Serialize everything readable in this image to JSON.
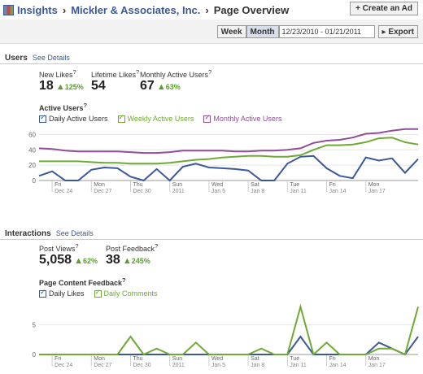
{
  "header": {
    "crumbs": [
      "Insights",
      "Mickler & Associates, Inc.",
      "Page Overview"
    ],
    "sep": "›",
    "create_ad": "+ Create an Ad"
  },
  "range": {
    "week": "Week",
    "month": "Month",
    "date_value": "12/23/2010 - 01/21/2011",
    "export": "Export"
  },
  "users": {
    "title": "Users",
    "see_details": "See Details",
    "metrics": [
      {
        "label": "New Likes",
        "value": "18",
        "pct": "125%",
        "up": true
      },
      {
        "label": "Lifetime Likes",
        "value": "54",
        "pct": "",
        "up": false
      },
      {
        "label": "Monthly Active Users",
        "value": "67",
        "pct": "63%",
        "up": true
      }
    ],
    "chart_title": "Active Users",
    "legend": [
      "Daily Active Users",
      "Weekly Active Users",
      "Monthly Active Users"
    ]
  },
  "interactions": {
    "title": "Interactions",
    "see_details": "See Details",
    "metrics": [
      {
        "label": "Post Views",
        "value": "5,058",
        "pct": "62%",
        "up": true
      },
      {
        "label": "Post Feedback",
        "value": "38",
        "pct": "245%",
        "up": true
      }
    ],
    "chart_title": "Page Content Feedback",
    "legend": [
      "Daily Likes",
      "Daily Comments"
    ]
  },
  "chart_data": [
    {
      "type": "line",
      "title": "Active Users",
      "ylim": [
        0,
        70
      ],
      "yticks": [
        0,
        20,
        40,
        60
      ],
      "x_ticks": [
        {
          "i": 1,
          "day": "Fri",
          "date": "Dec 24"
        },
        {
          "i": 4,
          "day": "Mon",
          "date": "Dec 27"
        },
        {
          "i": 7,
          "day": "Thu",
          "date": "Dec 30"
        },
        {
          "i": 10,
          "day": "Sun",
          "date": "2011"
        },
        {
          "i": 13,
          "day": "Wed",
          "date": "Jan 5"
        },
        {
          "i": 16,
          "day": "Sat",
          "date": "Jan 8"
        },
        {
          "i": 19,
          "day": "Tue",
          "date": "Jan 11"
        },
        {
          "i": 22,
          "day": "Fri",
          "date": "Jan 14"
        },
        {
          "i": 25,
          "day": "Mon",
          "date": "Jan 17"
        }
      ],
      "series": [
        {
          "name": "Daily Active Users",
          "color": "#3b5998",
          "values": [
            6,
            12,
            0,
            0,
            14,
            17,
            16,
            5,
            0,
            15,
            0,
            18,
            22,
            17,
            16,
            15,
            13,
            0,
            0,
            22,
            31,
            32,
            16,
            6,
            3,
            30,
            26,
            29,
            10,
            28
          ]
        },
        {
          "name": "Weekly Active Users",
          "color": "#6faa34",
          "values": [
            25,
            25,
            25,
            25,
            24,
            23,
            23,
            22,
            22,
            22,
            23,
            25,
            27,
            28,
            30,
            31,
            32,
            32,
            31,
            31,
            33,
            40,
            46,
            46,
            47,
            50,
            55,
            56,
            50,
            47
          ]
        },
        {
          "name": "Monthly Active Users",
          "color": "#8e4f96",
          "values": [
            42,
            41,
            39,
            38,
            38,
            38,
            38,
            37,
            36,
            36,
            37,
            39,
            39,
            39,
            39,
            38,
            38,
            39,
            39,
            40,
            42,
            49,
            52,
            53,
            56,
            61,
            62,
            65,
            67,
            67
          ]
        }
      ]
    },
    {
      "type": "line",
      "title": "Page Content Feedback",
      "ylim": [
        0,
        9
      ],
      "yticks": [
        0,
        5
      ],
      "x_ticks": [
        {
          "i": 1,
          "day": "Fri",
          "date": "Dec 24"
        },
        {
          "i": 4,
          "day": "Mon",
          "date": "Dec 27"
        },
        {
          "i": 7,
          "day": "Thu",
          "date": "Dec 30"
        },
        {
          "i": 10,
          "day": "Sun",
          "date": "2011"
        },
        {
          "i": 13,
          "day": "Wed",
          "date": "Jan 5"
        },
        {
          "i": 16,
          "day": "Sat",
          "date": "Jan 8"
        },
        {
          "i": 19,
          "day": "Tue",
          "date": "Jan 11"
        },
        {
          "i": 22,
          "day": "Fri",
          "date": "Jan 14"
        },
        {
          "i": 25,
          "day": "Mon",
          "date": "Jan 17"
        }
      ],
      "series": [
        {
          "name": "Daily Likes",
          "color": "#3b5998",
          "values": [
            0,
            0,
            0,
            0,
            0,
            0,
            0,
            0,
            0,
            0,
            0,
            0,
            0,
            0,
            0,
            0,
            0,
            0,
            0,
            0,
            3,
            0,
            0,
            0,
            0,
            0,
            2,
            1,
            0,
            3
          ]
        },
        {
          "name": "Daily Comments",
          "color": "#6faa34",
          "values": [
            0,
            0,
            0,
            0,
            0,
            0,
            0,
            3,
            0,
            1,
            0,
            0,
            2,
            0,
            0,
            0,
            0,
            1,
            0,
            0,
            8,
            0,
            2,
            0,
            0,
            0,
            1,
            1,
            0,
            8
          ]
        }
      ]
    }
  ]
}
